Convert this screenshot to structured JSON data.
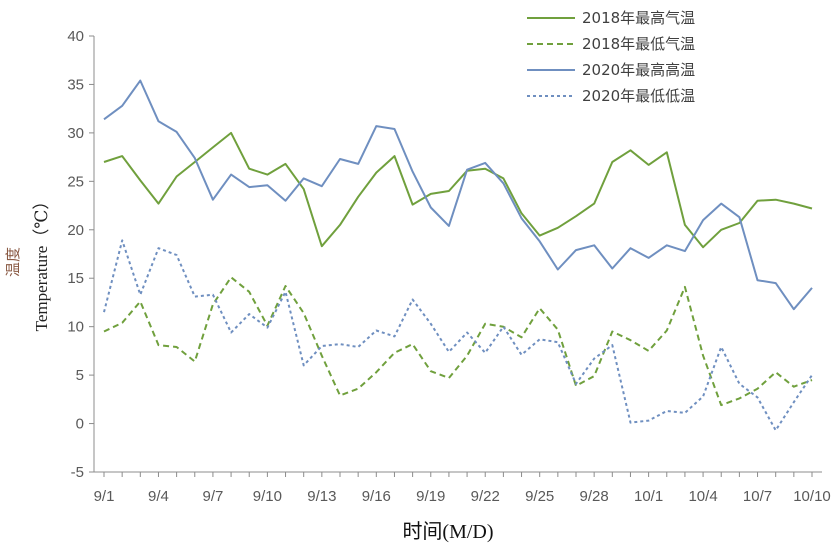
{
  "chart_data": {
    "type": "line",
    "xlabel": "时间(M/D)",
    "ylabel_cn": "温度",
    "ylabel_en": "Temperature（℃）",
    "ylim": [
      -5,
      40
    ],
    "yticks": [
      -5,
      0,
      5,
      10,
      15,
      20,
      25,
      30,
      35,
      40
    ],
    "x_tick_labels": [
      "9/1",
      "9/4",
      "9/7",
      "9/10",
      "9/13",
      "9/16",
      "9/19",
      "9/22",
      "9/25",
      "9/28",
      "10/1",
      "10/4",
      "10/7",
      "10/10"
    ],
    "x_tick_step": 3,
    "grid": false,
    "legend_position": "top-right",
    "series": [
      {
        "name": "2018年最高气温",
        "color": "#70a03d",
        "dash": "solid",
        "values": [
          27.0,
          27.6,
          25.1,
          22.7,
          25.5,
          27.0,
          28.5,
          30.0,
          26.3,
          25.7,
          26.8,
          24.2,
          18.3,
          20.5,
          23.4,
          25.9,
          27.6,
          22.6,
          23.7,
          24.0,
          26.1,
          26.3,
          25.3,
          21.7,
          19.4,
          20.2,
          21.4,
          22.7,
          27.0,
          28.2,
          26.7,
          28.0,
          20.5,
          18.2,
          20.0,
          20.7,
          23.0,
          23.1,
          22.7,
          22.2
        ]
      },
      {
        "name": "2018年最低气温",
        "color": "#70a03d",
        "dash": "dashed",
        "values": [
          9.5,
          10.4,
          12.6,
          8.1,
          7.9,
          6.4,
          12.3,
          15.1,
          13.6,
          10.1,
          14.2,
          11.4,
          7.0,
          2.9,
          3.6,
          5.3,
          7.3,
          8.2,
          5.4,
          4.7,
          7.0,
          10.3,
          10.0,
          8.9,
          11.9,
          9.7,
          3.9,
          4.9,
          9.5,
          8.6,
          7.5,
          9.6,
          14.1,
          7.0,
          1.9,
          2.6,
          3.6,
          5.3,
          3.8,
          4.5
        ]
      },
      {
        "name": "2020年最高高温",
        "color": "#6f8fc0",
        "dash": "solid",
        "values": [
          31.4,
          32.8,
          35.4,
          31.2,
          30.1,
          27.4,
          23.1,
          25.7,
          24.4,
          24.6,
          23.0,
          25.3,
          24.5,
          27.3,
          26.8,
          30.7,
          30.4,
          26.0,
          22.3,
          20.4,
          26.2,
          26.9,
          24.8,
          21.2,
          18.8,
          15.9,
          17.9,
          18.4,
          16.0,
          18.1,
          17.1,
          18.4,
          17.8,
          21.0,
          22.7,
          21.3,
          14.8,
          14.5,
          11.8,
          14.0
        ]
      },
      {
        "name": "2020年最低低温",
        "color": "#6f8fc0",
        "dash": "dotted",
        "values": [
          11.5,
          18.9,
          13.3,
          18.1,
          17.4,
          13.1,
          13.3,
          9.4,
          11.3,
          9.9,
          13.6,
          6.0,
          8.0,
          8.2,
          7.9,
          9.6,
          9.0,
          12.8,
          10.3,
          7.4,
          9.4,
          7.3,
          10.0,
          7.1,
          8.7,
          8.4,
          4.1,
          6.7,
          8.1,
          0.1,
          0.3,
          1.3,
          1.1,
          2.8,
          7.9,
          4.1,
          2.7,
          -0.7,
          2.2,
          5.0
        ]
      }
    ]
  }
}
